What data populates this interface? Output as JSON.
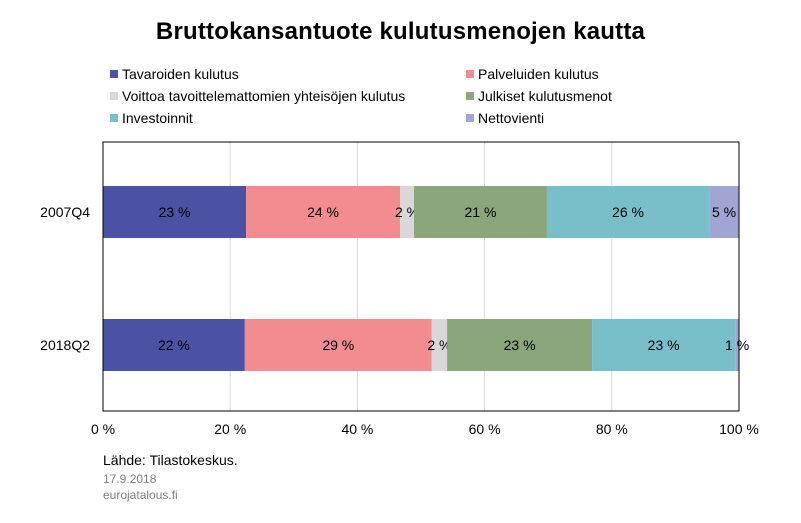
{
  "chart_data": {
    "type": "bar",
    "orientation": "horizontal",
    "stacked": "percent",
    "title": "Bruttokansantuote kulutusmenojen kautta",
    "categories": [
      "2007Q4",
      "2018Q2"
    ],
    "series": [
      {
        "name": "Tavaroiden kulutus",
        "color": "#4b51a3",
        "values": [
          22.5,
          22.3
        ],
        "labels": [
          "23 %",
          "22 %"
        ]
      },
      {
        "name": "Palveluiden kulutus",
        "color": "#f28c91",
        "values": [
          24.2,
          29.4
        ],
        "labels": [
          "24 %",
          "29 %"
        ]
      },
      {
        "name": "Voittoa tavoittelemattomien yhteisöjen kulutus",
        "color": "#d9d7da",
        "values": [
          2.2,
          2.4
        ],
        "labels": [
          "2 %",
          "2 %"
        ]
      },
      {
        "name": "Julkiset kulutusmenot",
        "color": "#8aa67a",
        "values": [
          20.9,
          22.8
        ],
        "labels": [
          "21 %",
          "23 %"
        ]
      },
      {
        "name": "Investoinnit",
        "color": "#78bfc9",
        "values": [
          25.5,
          22.5
        ],
        "labels": [
          "26 %",
          "23 %"
        ]
      },
      {
        "name": "Nettovienti",
        "color": "#a0a5d4",
        "values": [
          4.7,
          0.6
        ],
        "labels": [
          "5 %",
          "1 %"
        ]
      }
    ],
    "xlim": [
      0,
      100
    ],
    "xticks": [
      "0 %",
      "20 %",
      "40 %",
      "60 %",
      "80 %",
      "100 %"
    ],
    "grid": true,
    "legend_position": "top"
  },
  "footer": {
    "source": "Lähde: Tilastokeskus.",
    "date": "17.9.2018",
    "site": "eurojatalous.fi"
  }
}
